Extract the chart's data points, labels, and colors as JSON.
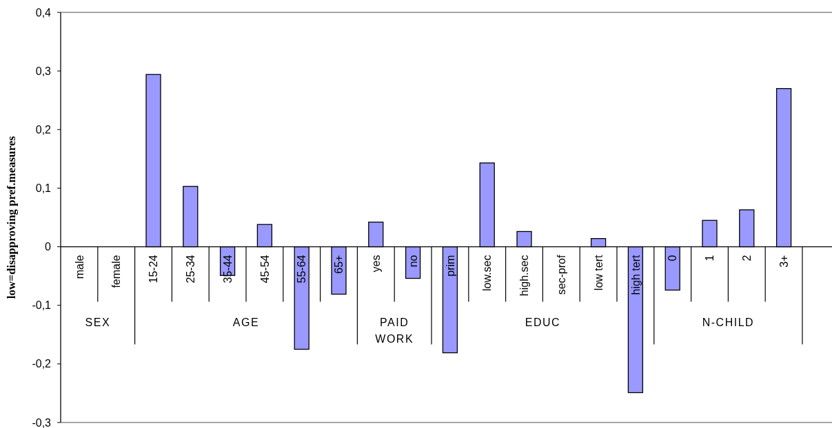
{
  "chart_data": {
    "type": "bar",
    "ylabel": "low=disapproving pref.measures",
    "categories": [
      "male",
      "female",
      "15-24",
      "25-34",
      "35-44",
      "45-54",
      "55-64",
      "65+",
      "yes",
      "no",
      "prim",
      "low.sec",
      "high.sec",
      "sec-prof",
      "low  tert",
      "high tert",
      "0",
      "1",
      "2",
      "3+"
    ],
    "values": [
      0,
      0,
      0.294,
      0.103,
      -0.049,
      0.038,
      -0.175,
      -0.081,
      0.042,
      -0.054,
      -0.181,
      0.143,
      0.026,
      0,
      0.014,
      -0.249,
      -0.074,
      0.045,
      0.063,
      0.27
    ],
    "color": "#9999ff",
    "ylim": [
      -0.3,
      0.4
    ],
    "yticks": [
      {
        "value": -0.3,
        "label": "-0,3"
      },
      {
        "value": -0.2,
        "label": "-0,2"
      },
      {
        "value": -0.1,
        "label": "-0,1"
      },
      0,
      {
        "value": 0.1,
        "label": "0,1"
      },
      {
        "value": 0.2,
        "label": "0,2"
      },
      {
        "value": 0.3,
        "label": "0,3"
      },
      {
        "value": 0.4,
        "label": "0,4"
      }
    ],
    "annotations": [
      "SEX",
      "AGE",
      "PAID WORK",
      "EDUC",
      "N-CHILD"
    ]
  }
}
